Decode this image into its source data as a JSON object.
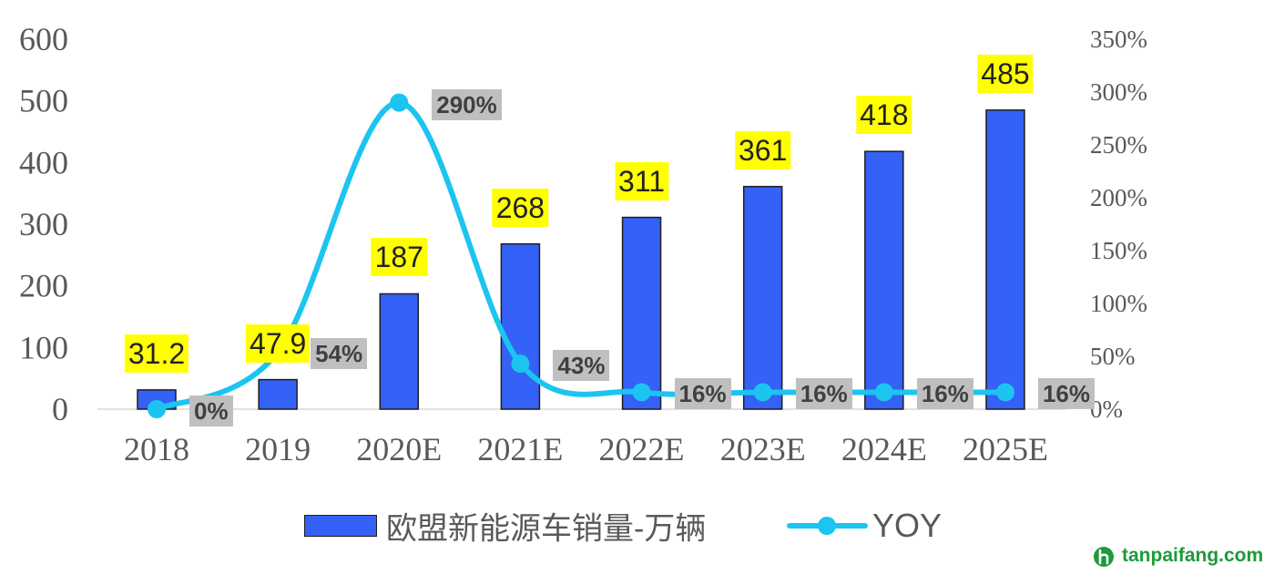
{
  "chart_data": {
    "type": "bar",
    "categories": [
      "2018",
      "2019",
      "2020E",
      "2021E",
      "2022E",
      "2023E",
      "2024E",
      "2025E"
    ],
    "series": [
      {
        "name": "欧盟新能源车销量-万辆",
        "type": "bar",
        "axis": "left",
        "color": "#3461f6",
        "values": [
          31.2,
          47.9,
          187,
          268,
          311,
          361,
          418,
          485
        ]
      },
      {
        "name": "YOY",
        "type": "line",
        "axis": "right",
        "smooth": true,
        "color": "#1cc4f0",
        "values": [
          0,
          54,
          290,
          43,
          16,
          16,
          16,
          16
        ],
        "labels": [
          "0%",
          "54%",
          "290%",
          "43%",
          "16%",
          "16%",
          "16%",
          "16%"
        ]
      }
    ],
    "y_range": [
      0,
      600
    ],
    "y_ticks": [
      0,
      100,
      200,
      300,
      400,
      500,
      600
    ],
    "y2_range": [
      0,
      350
    ],
    "y2_ticks": [
      "0%",
      "50%",
      "100%",
      "150%",
      "200%",
      "250%",
      "300%",
      "350%"
    ],
    "grid": false,
    "legend_position": "bottom",
    "bar_label_background": "#ffff00",
    "line_label_background": "#bfbfbf"
  },
  "watermark": {
    "text": "tanpaifang.com",
    "color": "#1e9a3c",
    "icon": "tanpaifang-logo-icon"
  }
}
